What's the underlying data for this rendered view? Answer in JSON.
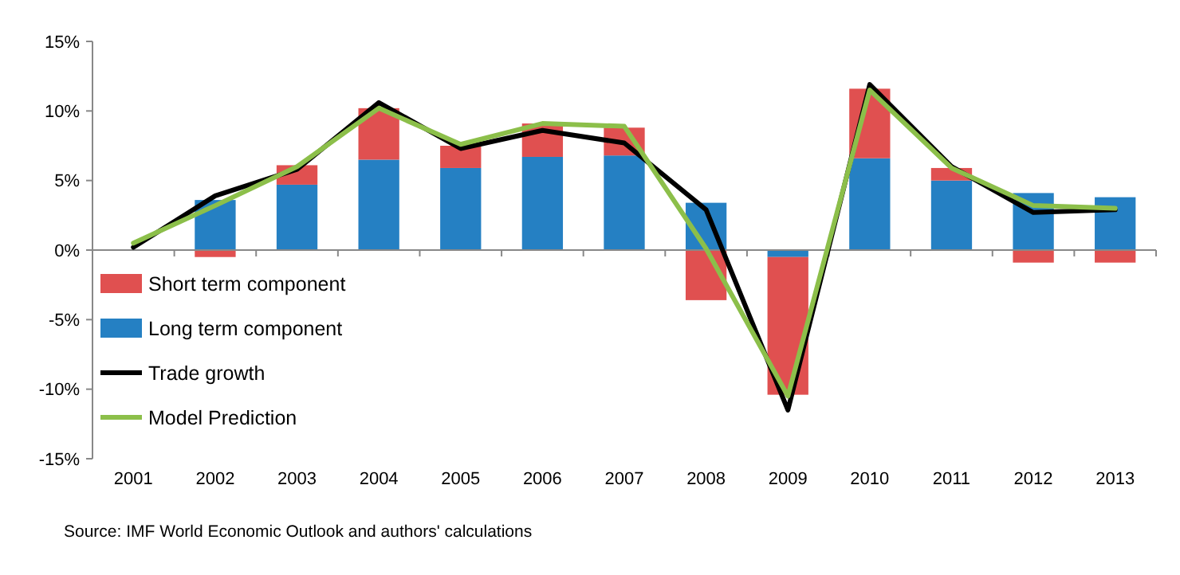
{
  "chart_data": {
    "type": "bar",
    "stacked": true,
    "categories": [
      "2001",
      "2002",
      "2003",
      "2004",
      "2005",
      "2006",
      "2007",
      "2008",
      "2009",
      "2010",
      "2011",
      "2012",
      "2013"
    ],
    "series": [
      {
        "name": "Long term component",
        "color": "#2580c3",
        "values": [
          null,
          3.6,
          4.7,
          6.5,
          5.9,
          6.7,
          6.8,
          3.4,
          -0.5,
          6.6,
          5.0,
          4.1,
          3.8
        ]
      },
      {
        "name": "Short term component",
        "color": "#e05050",
        "values": [
          null,
          -0.5,
          1.4,
          3.7,
          1.6,
          2.4,
          2.0,
          -3.6,
          -9.9,
          5.0,
          0.9,
          -0.9,
          -0.9
        ]
      },
      {
        "name": "Trade growth",
        "type": "line",
        "color": "#000000",
        "values": [
          0.2,
          3.9,
          5.8,
          10.6,
          7.3,
          8.6,
          7.7,
          2.9,
          -11.5,
          11.9,
          6.0,
          2.7,
          2.9
        ]
      },
      {
        "name": "Model Prediction",
        "type": "line",
        "color": "#8cbf4a",
        "values": [
          0.5,
          3.2,
          6.0,
          10.2,
          7.6,
          9.1,
          8.9,
          0.1,
          -10.5,
          11.5,
          5.9,
          3.2,
          3.0
        ]
      }
    ],
    "ylim": [
      -15,
      15
    ],
    "yticks": [
      {
        "value": -15,
        "label": "-15%"
      },
      {
        "value": -10,
        "label": "-10%"
      },
      {
        "value": -5,
        "label": "-5%"
      },
      {
        "value": 0,
        "label": "0%"
      },
      {
        "value": 5,
        "label": "5%"
      },
      {
        "value": 10,
        "label": "10%"
      },
      {
        "value": 15,
        "label": "15%"
      }
    ],
    "legend": "bottom left",
    "annotations": [
      "Source: IMF World Economic Outlook and authors' calculations"
    ]
  }
}
